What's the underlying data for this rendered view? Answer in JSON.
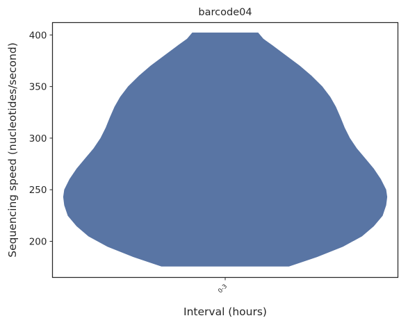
{
  "chart_data": {
    "type": "violin",
    "title": "barcode04",
    "xlabel": "Interval (hours)",
    "ylabel": "Sequencing speed (nucleotides/second)",
    "categories": [
      "0-3"
    ],
    "ylim": [
      165,
      412
    ],
    "yticks": [
      200,
      250,
      300,
      350,
      400
    ],
    "grid": false,
    "color": "#5975a4",
    "series": [
      {
        "category": "0-3",
        "min": 176,
        "max": 402,
        "density_profile": [
          {
            "y": 176,
            "half_width": 0.185
          },
          {
            "y": 185,
            "half_width": 0.265
          },
          {
            "y": 195,
            "half_width": 0.34
          },
          {
            "y": 205,
            "half_width": 0.395
          },
          {
            "y": 215,
            "half_width": 0.43
          },
          {
            "y": 225,
            "half_width": 0.455
          },
          {
            "y": 235,
            "half_width": 0.465
          },
          {
            "y": 243,
            "half_width": 0.468
          },
          {
            "y": 250,
            "half_width": 0.465
          },
          {
            "y": 260,
            "half_width": 0.45
          },
          {
            "y": 270,
            "half_width": 0.43
          },
          {
            "y": 280,
            "half_width": 0.405
          },
          {
            "y": 290,
            "half_width": 0.38
          },
          {
            "y": 300,
            "half_width": 0.36
          },
          {
            "y": 310,
            "half_width": 0.345
          },
          {
            "y": 320,
            "half_width": 0.333
          },
          {
            "y": 330,
            "half_width": 0.32
          },
          {
            "y": 340,
            "half_width": 0.303
          },
          {
            "y": 350,
            "half_width": 0.28
          },
          {
            "y": 360,
            "half_width": 0.25
          },
          {
            "y": 370,
            "half_width": 0.215
          },
          {
            "y": 380,
            "half_width": 0.175
          },
          {
            "y": 390,
            "half_width": 0.135
          },
          {
            "y": 396,
            "half_width": 0.11
          },
          {
            "y": 402,
            "half_width": 0.095
          }
        ]
      }
    ]
  }
}
